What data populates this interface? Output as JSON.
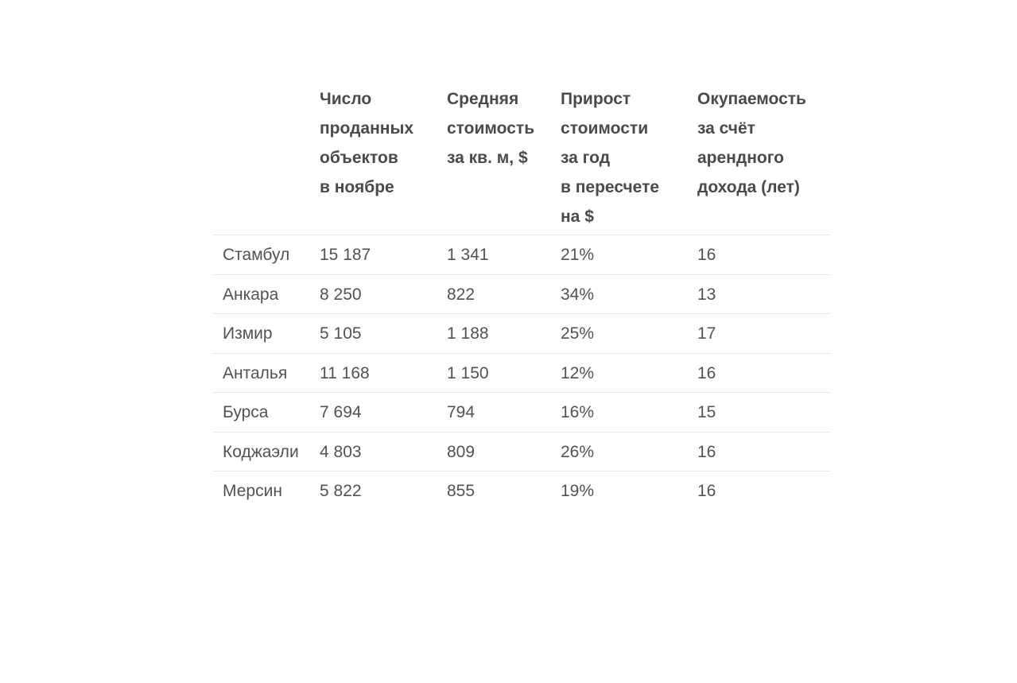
{
  "chart_data": {
    "type": "table",
    "title": "",
    "columns": [
      "",
      "Число\nпроданных\nобъектов\nв ноябре",
      "Средняя\nстоимость\nза кв. м, $",
      "Прирост\nстоимости\nза год\nв пересчете\nна $",
      "Окупаемость\nза счёт\nарендного\nдохода (лет)"
    ],
    "rows": [
      {
        "cells": [
          "Стамбул",
          "15 187",
          "1 341",
          "21%",
          "16"
        ]
      },
      {
        "cells": [
          "Анкара",
          "8 250",
          "822",
          "34%",
          "13"
        ]
      },
      {
        "cells": [
          "Измир",
          "5 105",
          "1 188",
          "25%",
          "17"
        ]
      },
      {
        "cells": [
          "Анталья",
          "11 168",
          "1 150",
          "12%",
          "16"
        ]
      },
      {
        "cells": [
          "Бурса",
          "7 694",
          "794",
          "16%",
          "15"
        ]
      },
      {
        "cells": [
          "Коджаэли",
          "4 803",
          "809",
          "26%",
          "16"
        ]
      },
      {
        "cells": [
          "Мерсин",
          "5 822",
          "855",
          "19%",
          "16"
        ]
      }
    ],
    "layout": {
      "grid": "horizontal dividers only",
      "header_position": "top",
      "last_row_border": false
    },
    "colors": {
      "background": "#ffffff",
      "header_text": "#4a4a4a",
      "body_text": "#525252",
      "divider": "#e9e9e9"
    }
  }
}
